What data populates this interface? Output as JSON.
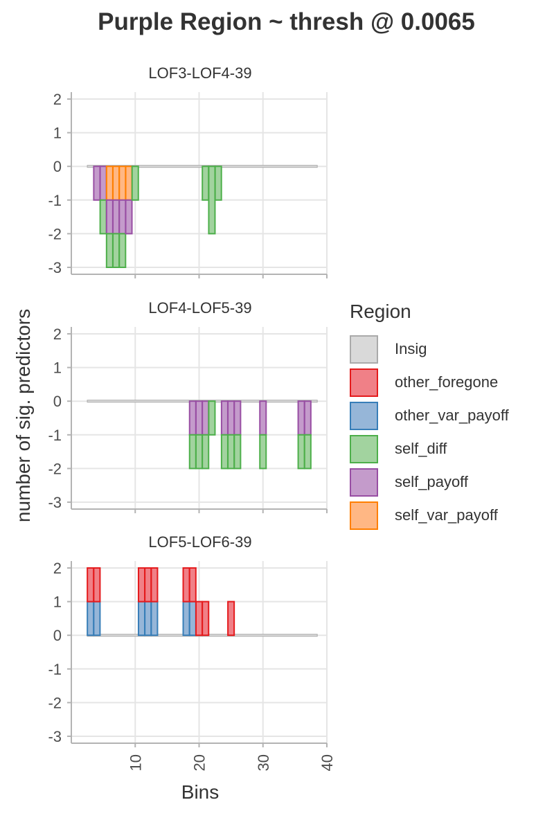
{
  "title": "Purple Region ~ thresh @ 0.0065",
  "colors": {
    "Insig": {
      "fill": "#d9d9d9",
      "stroke": "#aaaaaa"
    },
    "other_foregone": {
      "fill": "#f08087",
      "stroke": "#e41a1c"
    },
    "other_var_payoff": {
      "fill": "#96b6d8",
      "stroke": "#377eb8"
    },
    "self_diff": {
      "fill": "#a2d39f",
      "stroke": "#4daf4a"
    },
    "self_payoff": {
      "fill": "#c49bcb",
      "stroke": "#984ea3"
    },
    "self_var_payoff": {
      "fill": "#ffb784",
      "stroke": "#ff7f00"
    }
  },
  "legend": {
    "title": "Region",
    "items": [
      "Insig",
      "other_foregone",
      "other_var_payoff",
      "self_diff",
      "self_payoff",
      "self_var_payoff"
    ]
  },
  "chart_data": {
    "type": "bar",
    "stacked": true,
    "xlabel": "Bins",
    "ylabel": "number of sig. predictors",
    "xlim": [
      0,
      40
    ],
    "ylim": [
      -3,
      2
    ],
    "xticks": [
      10,
      20,
      30,
      40
    ],
    "yticks": [
      2,
      1,
      0,
      -1,
      -2,
      -3
    ],
    "grid": true,
    "legend_position": "right",
    "insig_bins": [
      3,
      38
    ],
    "panels": [
      {
        "title": "LOF3-LOF4-39",
        "bars": [
          {
            "bin": 4,
            "segments": [
              {
                "region": "self_payoff",
                "value": -1
              }
            ]
          },
          {
            "bin": 5,
            "segments": [
              {
                "region": "self_payoff",
                "value": -1
              },
              {
                "region": "self_diff",
                "value": -1
              }
            ]
          },
          {
            "bin": 6,
            "segments": [
              {
                "region": "self_var_payoff",
                "value": -1
              },
              {
                "region": "self_payoff",
                "value": -1
              },
              {
                "region": "self_diff",
                "value": -1
              }
            ]
          },
          {
            "bin": 7,
            "segments": [
              {
                "region": "self_var_payoff",
                "value": -1
              },
              {
                "region": "self_payoff",
                "value": -1
              },
              {
                "region": "self_diff",
                "value": -1
              }
            ]
          },
          {
            "bin": 8,
            "segments": [
              {
                "region": "self_var_payoff",
                "value": -1
              },
              {
                "region": "self_payoff",
                "value": -1
              },
              {
                "region": "self_diff",
                "value": -1
              }
            ]
          },
          {
            "bin": 9,
            "segments": [
              {
                "region": "self_var_payoff",
                "value": -1
              },
              {
                "region": "self_payoff",
                "value": -1
              }
            ]
          },
          {
            "bin": 10,
            "segments": [
              {
                "region": "self_diff",
                "value": -1
              }
            ]
          },
          {
            "bin": 21,
            "segments": [
              {
                "region": "self_diff",
                "value": -1
              }
            ]
          },
          {
            "bin": 22,
            "segments": [
              {
                "region": "self_diff",
                "value": -2
              }
            ]
          },
          {
            "bin": 23,
            "segments": [
              {
                "region": "self_diff",
                "value": -1
              }
            ]
          }
        ]
      },
      {
        "title": "LOF4-LOF5-39",
        "bars": [
          {
            "bin": 19,
            "segments": [
              {
                "region": "self_payoff",
                "value": -1
              },
              {
                "region": "self_diff",
                "value": -1
              }
            ]
          },
          {
            "bin": 20,
            "segments": [
              {
                "region": "self_payoff",
                "value": -1
              },
              {
                "region": "self_diff",
                "value": -1
              }
            ]
          },
          {
            "bin": 21,
            "segments": [
              {
                "region": "self_payoff",
                "value": -1
              },
              {
                "region": "self_diff",
                "value": -1
              }
            ]
          },
          {
            "bin": 22,
            "segments": [
              {
                "region": "self_diff",
                "value": -1
              }
            ]
          },
          {
            "bin": 24,
            "segments": [
              {
                "region": "self_payoff",
                "value": -1
              },
              {
                "region": "self_diff",
                "value": -1
              }
            ]
          },
          {
            "bin": 25,
            "segments": [
              {
                "region": "self_payoff",
                "value": -1
              },
              {
                "region": "self_diff",
                "value": -1
              }
            ]
          },
          {
            "bin": 26,
            "segments": [
              {
                "region": "self_payoff",
                "value": -1
              },
              {
                "region": "self_diff",
                "value": -1
              }
            ]
          },
          {
            "bin": 30,
            "segments": [
              {
                "region": "self_payoff",
                "value": -1
              },
              {
                "region": "self_diff",
                "value": -1
              }
            ]
          },
          {
            "bin": 36,
            "segments": [
              {
                "region": "self_payoff",
                "value": -1
              },
              {
                "region": "self_diff",
                "value": -1
              }
            ]
          },
          {
            "bin": 37,
            "segments": [
              {
                "region": "self_payoff",
                "value": -1
              },
              {
                "region": "self_diff",
                "value": -1
              }
            ]
          }
        ]
      },
      {
        "title": "LOF5-LOF6-39",
        "bars": [
          {
            "bin": 3,
            "segments": [
              {
                "region": "other_var_payoff",
                "value": 1
              },
              {
                "region": "other_foregone",
                "value": 1
              }
            ]
          },
          {
            "bin": 4,
            "segments": [
              {
                "region": "other_var_payoff",
                "value": 1
              },
              {
                "region": "other_foregone",
                "value": 1
              }
            ]
          },
          {
            "bin": 11,
            "segments": [
              {
                "region": "other_var_payoff",
                "value": 1
              },
              {
                "region": "other_foregone",
                "value": 1
              }
            ]
          },
          {
            "bin": 12,
            "segments": [
              {
                "region": "other_var_payoff",
                "value": 1
              },
              {
                "region": "other_foregone",
                "value": 1
              }
            ]
          },
          {
            "bin": 13,
            "segments": [
              {
                "region": "other_var_payoff",
                "value": 1
              },
              {
                "region": "other_foregone",
                "value": 1
              }
            ]
          },
          {
            "bin": 18,
            "segments": [
              {
                "region": "other_var_payoff",
                "value": 1
              },
              {
                "region": "other_foregone",
                "value": 1
              }
            ]
          },
          {
            "bin": 19,
            "segments": [
              {
                "region": "other_var_payoff",
                "value": 1
              },
              {
                "region": "other_foregone",
                "value": 1
              }
            ]
          },
          {
            "bin": 20,
            "segments": [
              {
                "region": "other_foregone",
                "value": 1
              }
            ]
          },
          {
            "bin": 21,
            "segments": [
              {
                "region": "other_foregone",
                "value": 1
              }
            ]
          },
          {
            "bin": 25,
            "segments": [
              {
                "region": "other_foregone",
                "value": 1
              }
            ]
          }
        ]
      }
    ]
  }
}
